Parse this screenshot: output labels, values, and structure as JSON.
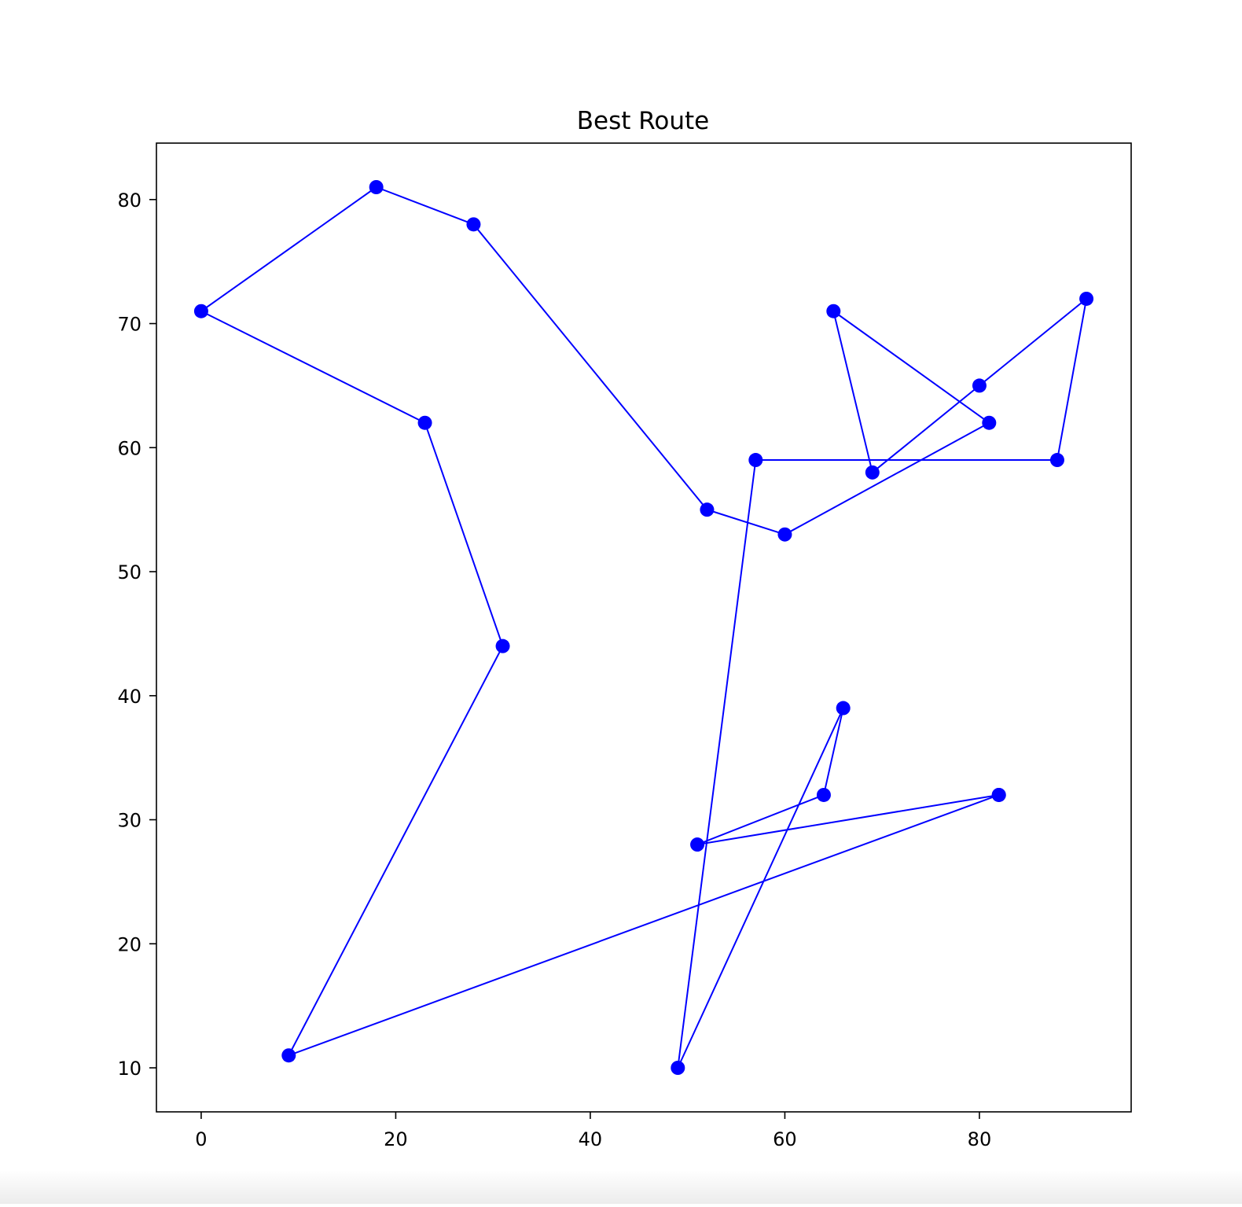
{
  "chart_data": {
    "type": "line",
    "title": "Best Route",
    "xlabel": "",
    "ylabel": "",
    "xlim": [
      -4.6,
      95.6
    ],
    "ylim": [
      6.45,
      84.55
    ],
    "x_ticks": [
      0,
      20,
      40,
      60,
      80
    ],
    "y_ticks": [
      10,
      20,
      30,
      40,
      50,
      60,
      70,
      80
    ],
    "x_tick_labels": [
      "0",
      "20",
      "40",
      "60",
      "80"
    ],
    "y_tick_labels": [
      "10",
      "20",
      "30",
      "40",
      "50",
      "60",
      "70",
      "80"
    ],
    "grid": false,
    "legend": "none",
    "series": [
      {
        "color": "#0000ff",
        "marker": "circle",
        "x": [
          82,
          51,
          64,
          66,
          49,
          57,
          88,
          91,
          80,
          69,
          65,
          81,
          60,
          52,
          28,
          18,
          0,
          23,
          31,
          9,
          82
        ],
        "y": [
          32,
          28,
          32,
          39,
          10,
          59,
          59,
          72,
          65,
          58,
          71,
          62,
          53,
          55,
          78,
          81,
          71,
          62,
          44,
          11,
          32
        ]
      }
    ]
  }
}
